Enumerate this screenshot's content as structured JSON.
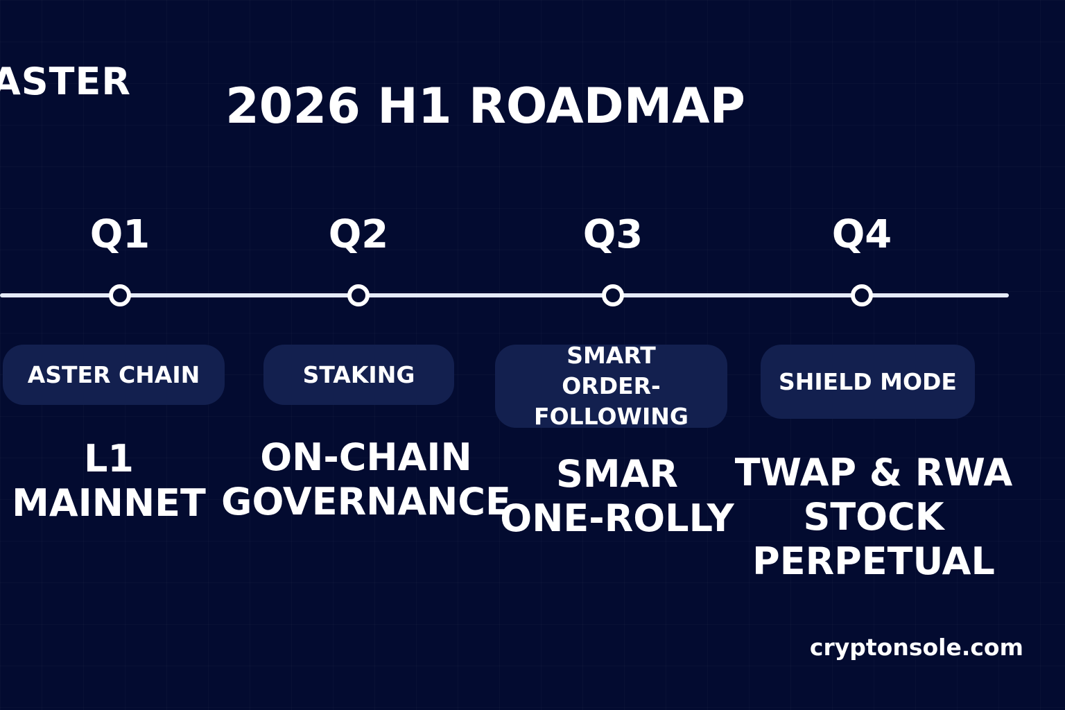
{
  "brand": "ASTER",
  "title": "2026 H1 ROADMAP",
  "colors": {
    "background": "#030b30",
    "pill": "#13204f",
    "text": "#ffffff",
    "timeline": "#e6ebf7"
  },
  "milestones": [
    {
      "quarter": "Q1",
      "feature": "ASTER CHAIN",
      "description_lines": [
        "L1",
        "MAINNET"
      ]
    },
    {
      "quarter": "Q2",
      "feature": "STAKING",
      "description_lines": [
        "ON-CHAIN",
        "GOVERNANCE"
      ]
    },
    {
      "quarter": "Q3",
      "feature_lines": [
        "SMART",
        "ORDER-FOLLOWING"
      ],
      "description_lines": [
        "SMAR",
        "ONE-ROLLY"
      ]
    },
    {
      "quarter": "Q4",
      "feature": "SHIELD MODE",
      "description_lines": [
        "TWAP & RWA",
        "STOCK",
        "PERPETUAL"
      ]
    }
  ],
  "footer": "cryptonsole.com"
}
